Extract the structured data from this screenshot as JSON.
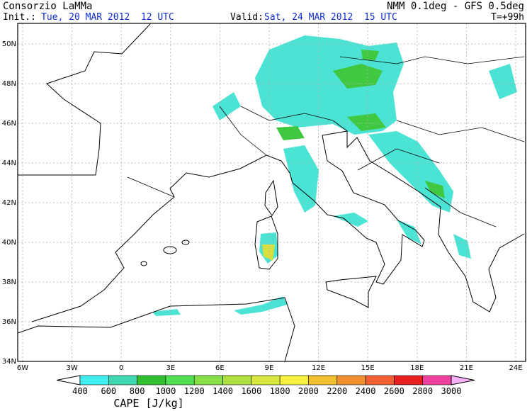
{
  "header": {
    "org": "Consorzio LaMMa",
    "model": "NMM 0.1deg - GFS 0.5deg",
    "init_label": "Init.:",
    "init": "Tue, 20 MAR 2012  12 UTC",
    "valid_label": "Valid:",
    "valid": "Sat, 24 MAR 2012  15 UTC",
    "lead": "T=+99h"
  },
  "map": {
    "lat_labels": [
      "50N",
      "48N",
      "46N",
      "44N",
      "42N",
      "40N",
      "38N",
      "36N",
      "34N"
    ],
    "lon_labels": [
      "6W",
      "3W",
      "0",
      "3E",
      "6E",
      "9E",
      "12E",
      "15E",
      "18E",
      "21E",
      "24E"
    ]
  },
  "colorbar": {
    "labels": [
      "400",
      "600",
      "800",
      "1000",
      "1200",
      "1400",
      "1600",
      "1800",
      "2000",
      "2200",
      "2400",
      "2600",
      "2800",
      "3000"
    ],
    "title": "CAPE [J/kg]"
  }
}
